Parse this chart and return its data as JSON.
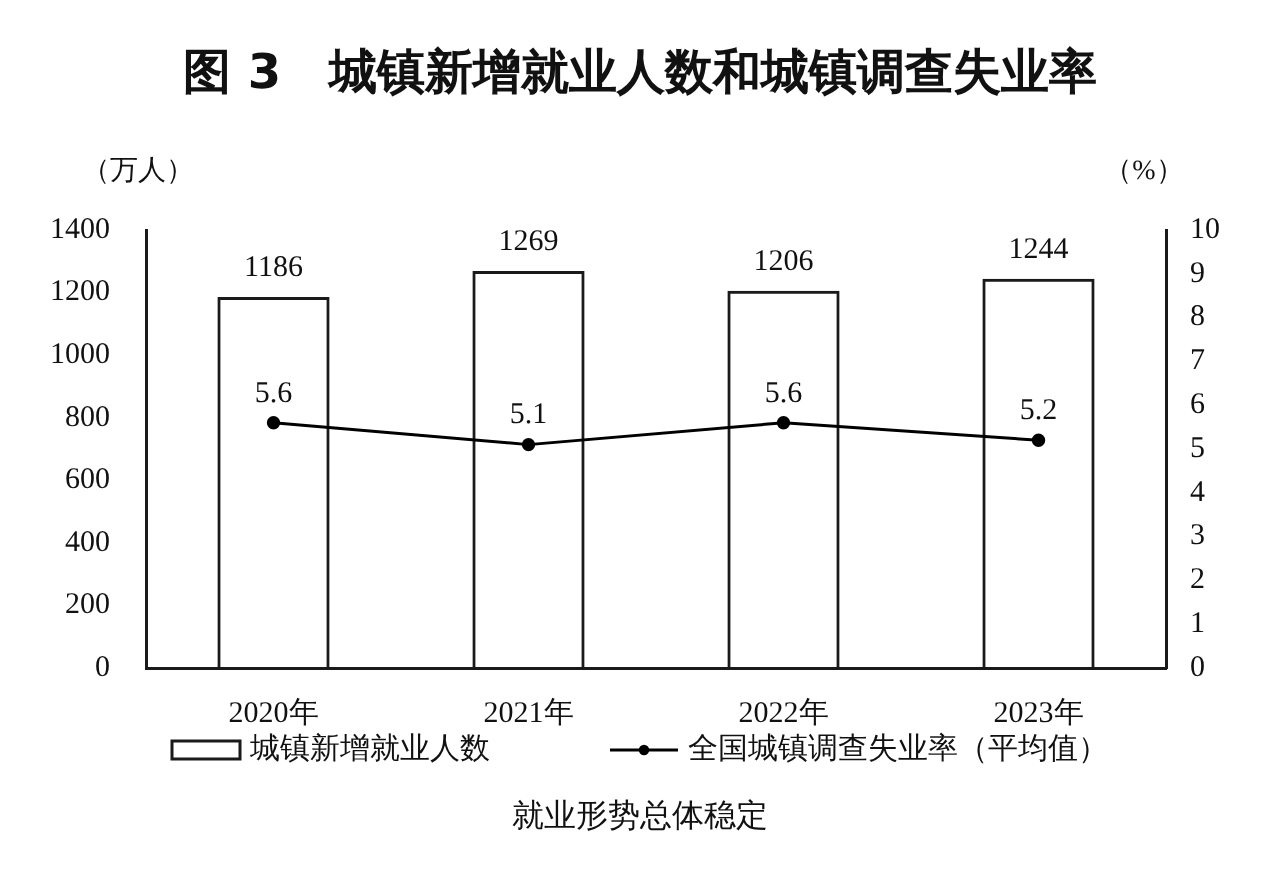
{
  "chart_data": {
    "type": "bar",
    "title": "图 3　城镇新增就业人数和城镇调查失业率",
    "ylabel": "（万人）",
    "y2label": "（%）",
    "categories": [
      "2020年",
      "2021年",
      "2022年",
      "2023年"
    ],
    "series": [
      {
        "name": "城镇新增就业人数",
        "color": "#1a1a1a",
        "values": [
          1186,
          1269,
          1206,
          1244
        ]
      },
      {
        "name": "全国城镇调查失业率（平均值）",
        "type": "line",
        "axis": "y2",
        "color": "#000000",
        "values": [
          5.6,
          5.1,
          5.6,
          5.2
        ]
      }
    ],
    "ylim": [
      0,
      1400
    ],
    "yticks": [
      0,
      200,
      400,
      600,
      800,
      1000,
      1200,
      1400
    ],
    "y2lim": [
      0,
      10
    ],
    "y2ticks": [
      0,
      1,
      2,
      3,
      4,
      5,
      6,
      7,
      8,
      9,
      10
    ],
    "data_labels": true,
    "legend": "bottom",
    "marker": "circle",
    "annotations": [
      "就业形势总体稳定"
    ]
  }
}
